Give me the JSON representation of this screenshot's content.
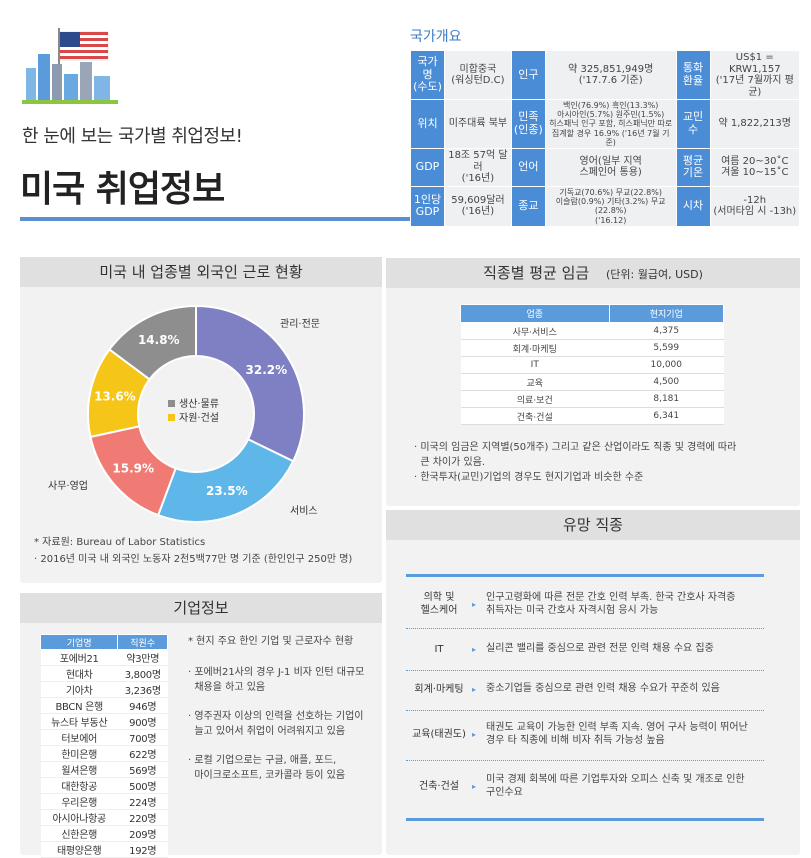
{
  "header": {
    "subtitle": "한 눈에 보는 국가별 취업정보!",
    "title": "미국 취업정보"
  },
  "overview": {
    "title": "국가개요",
    "rows": [
      [
        {
          "h": "국가명\n(수도)"
        },
        {
          "v": "미합중국\n(워싱턴D.C)"
        },
        {
          "h": "인구"
        },
        {
          "v": "약 325,851,949명\n('17.7.6 기준)"
        },
        {
          "h": "통화\n환율"
        },
        {
          "v": "US$1 = KRW1,157\n('17년 7월까지 평균)"
        }
      ],
      [
        {
          "h": "위치"
        },
        {
          "v": "미주대륙 북부"
        },
        {
          "h": "민족\n(인종)"
        },
        {
          "v": "백인(76.9%) 흑인(13.3%)\n아시아인(5.7%) 원주민(1.5%)\n히스패닉 인구 포함, 히스패닉만 따로\n집계할 경우 16.9% ('16년 7월 기준)"
        },
        {
          "h": "교민수"
        },
        {
          "v": "약 1,822,213명"
        }
      ],
      [
        {
          "h": "GDP"
        },
        {
          "v": "18조 57억 달러\n('16년)"
        },
        {
          "h": "언어"
        },
        {
          "v": "영어(일부 지역\n스페인어 통용)"
        },
        {
          "h": "평균\n기온"
        },
        {
          "v": "여름 20~30˚C\n겨울 10~15˚C"
        }
      ],
      [
        {
          "h": "1인당\nGDP"
        },
        {
          "v": "59,609달러\n('16년)"
        },
        {
          "h": "종교"
        },
        {
          "v": "기독교(70.6%) 무교(22.8%)\n이슬람(0.9%) 기타(3.2%) 무교(22.8%)\n('16.12)"
        },
        {
          "h": "시차"
        },
        {
          "v": "-12h\n(서머타임 시 -13h)"
        }
      ]
    ]
  },
  "workers": {
    "title": "미국 내 업종별 외국인 근로 현황",
    "legend": [
      {
        "label": "생산·물류",
        "color": "#8e8e8e"
      },
      {
        "label": "자원·건설",
        "color": "#f5c518"
      }
    ],
    "source": "* 자료원: Bureau of Labor Statistics",
    "note": "· 2016년 미국 내 외국인 노동자 2천5백77만 명 기준 (한인인구 250만 명)"
  },
  "chart_data": {
    "type": "pie",
    "categories": [
      "관리·전문",
      "서비스",
      "사무·영업",
      "자원·건설",
      "생산·물류"
    ],
    "values": [
      32.2,
      23.5,
      15.9,
      13.6,
      14.8
    ],
    "value_labels": [
      "32.2%",
      "23.5%",
      "15.9%",
      "13.6%",
      "14.8%"
    ],
    "colors": [
      "#7f7fc4",
      "#5fb6e8",
      "#f07b74",
      "#f5c518",
      "#8e8e8e"
    ],
    "donut": true,
    "legend": "center"
  },
  "wage": {
    "title": "직종별 평균 임금",
    "unit": "(단위: 월급여, USD)",
    "headers": [
      "업종",
      "현지기업"
    ],
    "rows": [
      [
        "사무·서비스",
        "4,375"
      ],
      [
        "회계·마케팅",
        "5,599"
      ],
      [
        "IT",
        "10,000"
      ],
      [
        "교육",
        "4,500"
      ],
      [
        "의료·보건",
        "8,181"
      ],
      [
        "건축·건설",
        "6,341"
      ]
    ],
    "notes": [
      "· 미국의 임금은 지역별(50개주) 그리고 같은 산업이라도 직종 및 경력에 따라",
      "  큰 차이가 있음.",
      "· 한국투자(교민)기업의 경우도 현지기업과 비슷한 수준"
    ]
  },
  "company": {
    "title": "기업정보",
    "headers": [
      "기업명",
      "직원수"
    ],
    "rows": [
      [
        "포에버21",
        "약3만명"
      ],
      [
        "현대차",
        "3,800명"
      ],
      [
        "기아차",
        "3,236명"
      ],
      [
        "BBCN 은행",
        "946명"
      ],
      [
        "뉴스타 부동산",
        "900명"
      ],
      [
        "터보에어",
        "700명"
      ],
      [
        "한미은행",
        "622명"
      ],
      [
        "윌셔은행",
        "569명"
      ],
      [
        "대한항공",
        "500명"
      ],
      [
        "우리은행",
        "224명"
      ],
      [
        "아시아나항공",
        "220명"
      ],
      [
        "신한은행",
        "209명"
      ],
      [
        "태평양은행",
        "192명"
      ]
    ],
    "notes": [
      "* 현지 주요 한인 기업 및 근로자수 현황",
      "· 포에버21사의 경우 J-1 비자 인턴 대규모\n  채용을 하고 있음",
      "· 영주권자 이상의 인력을 선호하는 기업이\n  늘고 있어서 취업이 어려워지고 있음",
      "· 로컬 기업으로는 구글, 애플, 포드,\n  마이크로소프트, 코카콜라 등이 있음"
    ]
  },
  "jobs": {
    "title": "유망 직종",
    "items": [
      {
        "name": "의학 및\n헬스케어",
        "desc": "인구고령화에 따른 전문 간호 인력 부족. 한국 간호사 자격증\n취득자는 미국 간호사 자격시험 응시 가능"
      },
      {
        "name": "IT",
        "desc": "실리콘 밸리를 중심으로 관련 전문 인력 채용 수요 집중"
      },
      {
        "name": "회계·마케팅",
        "desc": "중소기업들 중심으로 관련 인력 채용 수요가 꾸준히 있음"
      },
      {
        "name": "교육(태권도)",
        "desc": "태권도 교육이 가능한 인력 부족 지속. 영어 구사 능력이 뛰어난\n경우 타 직종에 비해 비자 취득 가능성 높음"
      },
      {
        "name": "건축·건설",
        "desc": "미국 경제 회복에 따른 기업투자와 오피스 신축 및 개조로 인한\n구인수요"
      }
    ]
  }
}
